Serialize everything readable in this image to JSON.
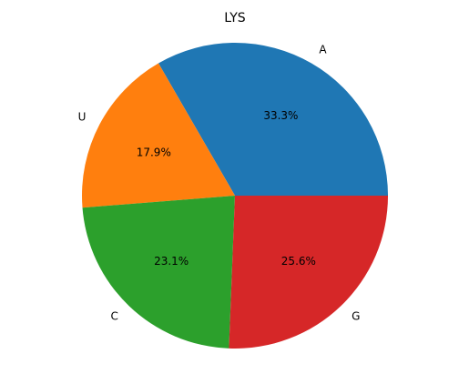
{
  "chart_data": {
    "type": "pie",
    "title": "LYS",
    "start_angle_deg": 0,
    "direction": "counterclockwise",
    "slices": [
      {
        "label": "A",
        "value": 33.3,
        "pct_label": "33.3%",
        "color": "#1f77b4"
      },
      {
        "label": "U",
        "value": 17.9,
        "pct_label": "17.9%",
        "color": "#ff7f0e"
      },
      {
        "label": "C",
        "value": 23.1,
        "pct_label": "23.1%",
        "color": "#2ca02c"
      },
      {
        "label": "G",
        "value": 25.6,
        "pct_label": "25.6%",
        "color": "#d62728"
      }
    ]
  }
}
